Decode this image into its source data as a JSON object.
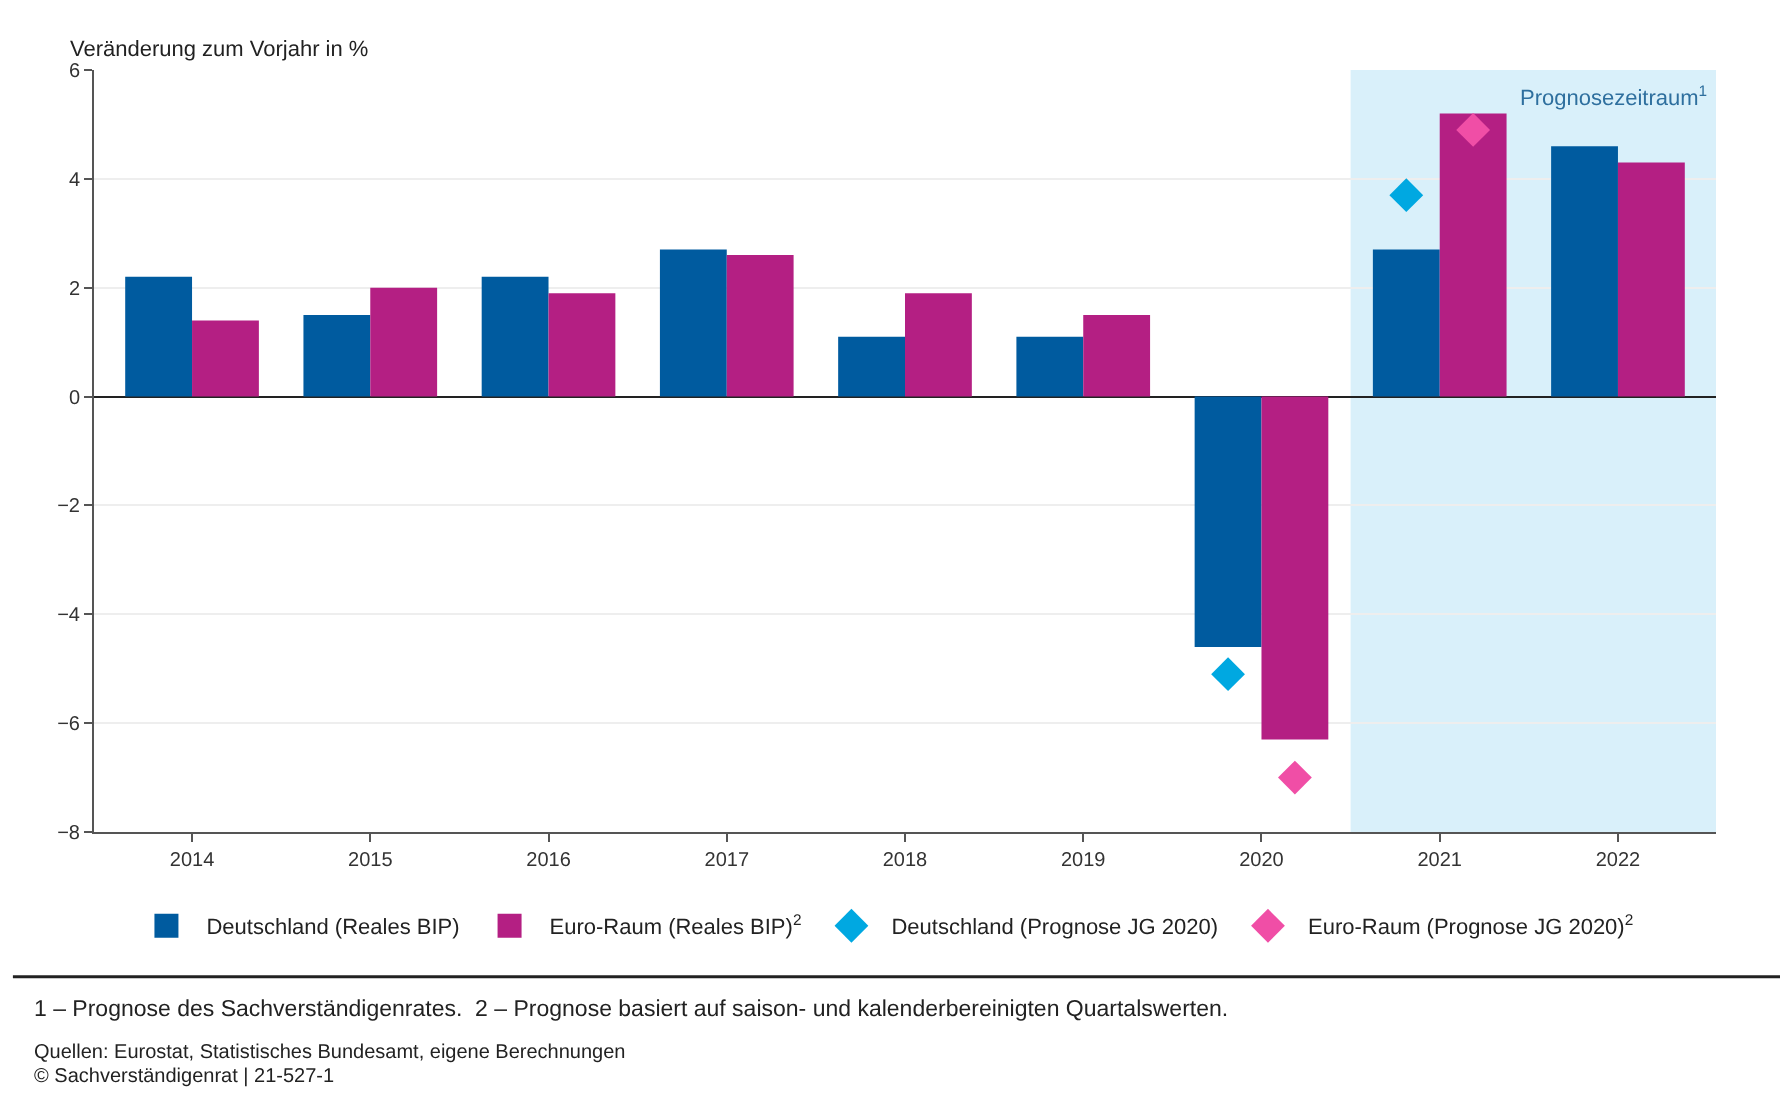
{
  "chart_data": {
    "type": "bar",
    "ylabel": "Veränderung zum Vorjahr in %",
    "categories": [
      "2014",
      "2015",
      "2016",
      "2017",
      "2018",
      "2019",
      "2020",
      "2021",
      "2022"
    ],
    "series": [
      {
        "name": "Deutschland (Reales BIP)",
        "color": "#005b9f",
        "values": [
          2.2,
          1.5,
          2.2,
          2.7,
          1.1,
          1.1,
          -4.6,
          2.7,
          4.6
        ]
      },
      {
        "name": "Euro-Raum (Reales BIP)$^{2}$",
        "color": "#b41f83",
        "values": [
          1.4,
          2.0,
          1.9,
          2.6,
          1.9,
          1.5,
          -6.3,
          5.2,
          4.3
        ]
      },
      {
        "name": "Deutschland (Prognose JG 2020)",
        "type": "scatter",
        "color": "#00a8e1",
        "values": [
          null,
          null,
          null,
          null,
          null,
          null,
          -5.1,
          3.7,
          null
        ]
      },
      {
        "name": "Euro-Raum (Prognose JG 2020)$^{2}$",
        "type": "scatter",
        "color": "#f04ea6",
        "values": [
          null,
          null,
          null,
          null,
          null,
          null,
          -7.0,
          4.9,
          null
        ]
      }
    ],
    "marker": "diamond",
    "ylim": [
      -8,
      6
    ],
    "yticks": [
      -8,
      -6,
      -4,
      -2,
      0,
      2,
      4,
      6
    ],
    "grid": "y",
    "legend": "bottom",
    "bands": [
      {
        "axis": "x",
        "from": "2021",
        "to": "2022",
        "label": "Prognosezeitraum$^{1}$",
        "color": "#d9f0fa"
      }
    ],
    "annotations": [
      "1 – Prognose des Sachverständigenrates.  2 – Prognose basiert auf saison- und kalenderbereinigten Quartalswerten.",
      "Quellen: Eurostat, Statistisches Bundesamt, eigene Berechnungen",
      "© Sachverständigenrat | 21-527-1"
    ]
  }
}
